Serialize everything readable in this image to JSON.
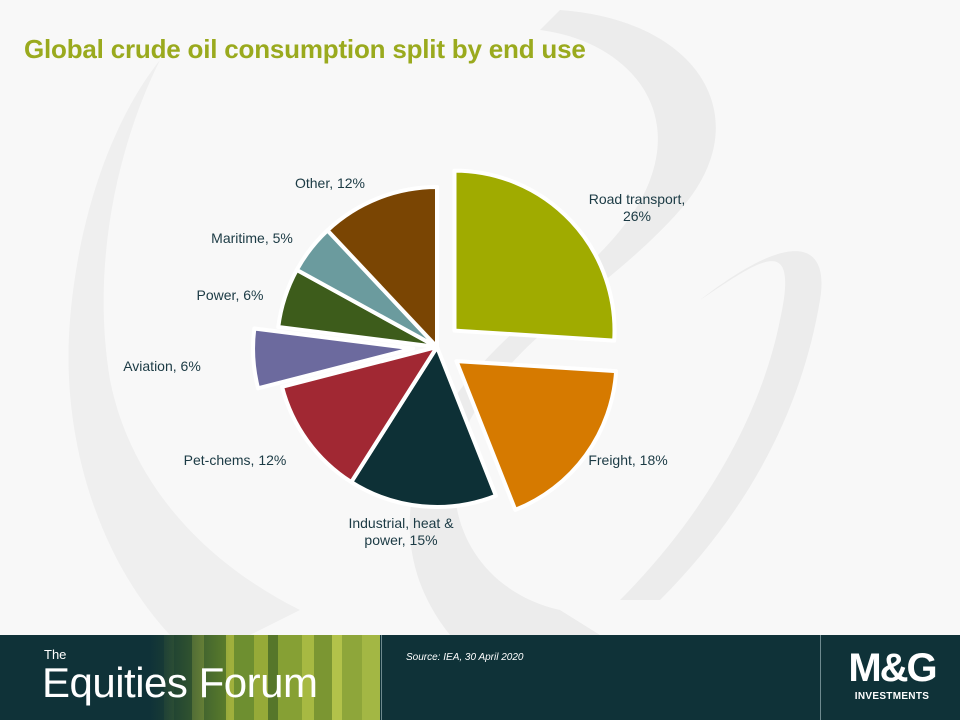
{
  "title": "Global crude oil consumption split by end use",
  "chart_data": {
    "type": "pie",
    "title": "Global crude oil consumption split by end use",
    "unit": "%",
    "slices": [
      {
        "label_lines": [
          "Road transport,",
          "26%"
        ],
        "category": "Road transport",
        "value": 26,
        "color": "#a0ab00",
        "exploded": true
      },
      {
        "label_lines": [
          "Freight, 18%"
        ],
        "category": "Freight",
        "value": 18,
        "color": "#d67a00",
        "exploded": true
      },
      {
        "label_lines": [
          "Industrial,  heat &",
          "power, 15%"
        ],
        "category": "Industrial, heat & power",
        "value": 15,
        "color": "#0d3036",
        "exploded": false
      },
      {
        "label_lines": [
          "Pet-chems, 12%"
        ],
        "category": "Pet-chems",
        "value": 12,
        "color": "#a12833",
        "exploded": false
      },
      {
        "label_lines": [
          "Aviation, 6%"
        ],
        "category": "Aviation",
        "value": 6,
        "color": "#6c6a9e",
        "exploded": true
      },
      {
        "label_lines": [
          "Power, 6%"
        ],
        "category": "Power",
        "value": 6,
        "color": "#3d5c1b",
        "exploded": false
      },
      {
        "label_lines": [
          "Maritime, 5%"
        ],
        "category": "Maritime",
        "value": 5,
        "color": "#6b9b9e",
        "exploded": false
      },
      {
        "label_lines": [
          "Other, 12%"
        ],
        "category": "Other",
        "value": 12,
        "color": "#7a4503",
        "exploded": false
      }
    ],
    "start_angle_deg": 0,
    "direction": "clockwise",
    "legend": "none"
  },
  "footer": {
    "brand_the": "The",
    "brand_main": "Equities Forum",
    "source": "Source: IEA, 30 April 2020",
    "logo_word": "M&G",
    "logo_sub": "INVESTMENTS"
  }
}
